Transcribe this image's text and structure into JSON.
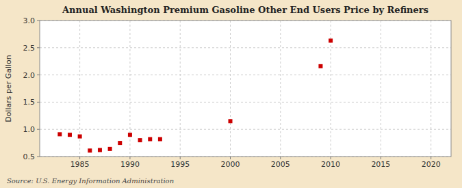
{
  "chart_data": {
    "type": "scatter",
    "title": "Annual Washington Premium Gasoline Other End Users Price by Refiners",
    "y_label": "Dollars per Gallon",
    "source": "Source: U.S. Energy Information Administration",
    "x": [
      1983,
      1984,
      1985,
      1986,
      1987,
      1988,
      1989,
      1990,
      1991,
      1992,
      1993,
      2000,
      2009,
      2010
    ],
    "y": [
      0.91,
      0.9,
      0.87,
      0.61,
      0.62,
      0.64,
      0.75,
      0.9,
      0.8,
      0.82,
      0.82,
      1.15,
      2.16,
      2.63
    ],
    "color": "#cc0000",
    "marker": "square",
    "xlim": [
      1981,
      2022
    ],
    "ylim": [
      0.5,
      3.0
    ],
    "xticks": [
      1985,
      1990,
      1995,
      2000,
      2005,
      2010,
      2015,
      2020
    ],
    "yticks": [
      0.5,
      {
        "value": 1.0,
        "label": "1.0"
      },
      1.5,
      {
        "value": 2.0,
        "label": "2.0"
      },
      2.5,
      {
        "value": 3.0,
        "label": "3.0"
      }
    ],
    "grid": true
  }
}
